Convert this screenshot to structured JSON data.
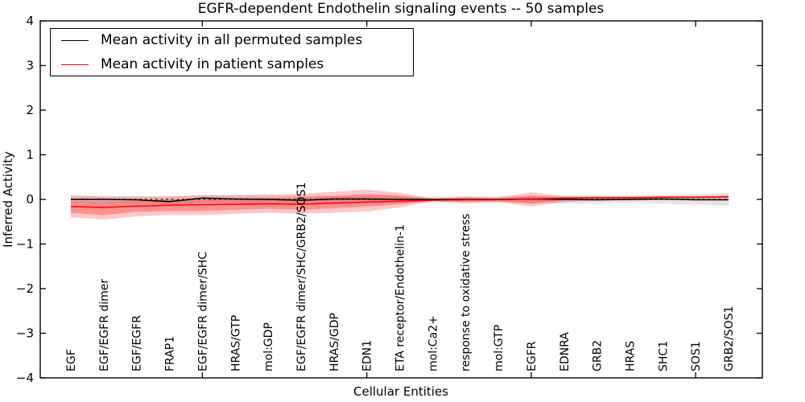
{
  "chart_data": {
    "type": "line",
    "title": "EGFR-dependent Endothelin signaling events -- 50 samples",
    "xlabel": "Cellular Entities",
    "ylabel": "Inferred Activity",
    "ylim": [
      -4,
      4
    ],
    "grid": false,
    "legend_position": "upper left",
    "yticks": [
      {
        "v": 4,
        "label": "4"
      },
      {
        "v": 3,
        "label": "3"
      },
      {
        "v": 2,
        "label": "2"
      },
      {
        "v": 1,
        "label": "1"
      },
      {
        "v": 0,
        "label": "0"
      },
      {
        "v": -1,
        "label": "−1"
      },
      {
        "v": -2,
        "label": "−2"
      },
      {
        "v": -3,
        "label": "−3"
      },
      {
        "v": -4,
        "label": "−4"
      }
    ],
    "categories": [
      "EGF",
      "EGF/EGFR dimer",
      "EGF/EGFR",
      "FRAP1",
      "EGF/EGFR dimer/SHC",
      "HRAS/GTP",
      "mol:GDP",
      "EGF/EGFR dimer/SHC/GRB2/SOS1",
      "HRAS/GDP",
      "EDN1",
      "ETA receptor/Endothelin-1",
      "mol:Ca2+",
      "response to oxidative stress",
      "mol:GTP",
      "EGFR",
      "EDNRA",
      "GRB2",
      "HRAS",
      "SHC1",
      "SOS1",
      "GRB2/SOS1"
    ],
    "major_tick_indices": [
      4,
      9,
      14,
      19
    ],
    "legend": [
      {
        "label": "Mean activity in all permuted samples",
        "color": "#000000"
      },
      {
        "label": "Mean activity in patient samples",
        "color": "#ff0000"
      }
    ],
    "zero_line": {
      "style": "dotted",
      "color": "#000000",
      "y": 0
    },
    "series": [
      {
        "name": "permuted_mean",
        "color": "#000000",
        "values": [
          0.0,
          0.0,
          -0.01,
          -0.05,
          0.03,
          0.01,
          0.0,
          -0.02,
          0.01,
          0.01,
          0.0,
          0.0,
          0.0,
          0.0,
          0.01,
          0.0,
          -0.01,
          0.0,
          0.01,
          -0.01,
          -0.01
        ]
      },
      {
        "name": "patient_mean",
        "color": "#ff0000",
        "values": [
          -0.16,
          -0.18,
          -0.15,
          -0.13,
          -0.12,
          -0.11,
          -0.1,
          -0.11,
          -0.08,
          -0.06,
          -0.04,
          -0.02,
          -0.01,
          -0.01,
          0.01,
          0.03,
          0.04,
          0.04,
          0.05,
          0.05,
          0.06
        ]
      }
    ],
    "bands": [
      {
        "name": "permuted_band",
        "color": "rgba(0,0,0,0.10)",
        "top": [
          0.07,
          0.08,
          0.07,
          0.06,
          0.1,
          0.09,
          0.08,
          0.08,
          0.08,
          0.08,
          0.08,
          0.07,
          0.07,
          0.07,
          0.08,
          0.08,
          0.09,
          0.08,
          0.1,
          0.12,
          0.14
        ],
        "bottom": [
          -0.07,
          -0.09,
          -0.09,
          -0.11,
          -0.07,
          -0.09,
          -0.1,
          -0.12,
          -0.09,
          -0.08,
          -0.08,
          -0.07,
          -0.07,
          -0.07,
          -0.08,
          -0.09,
          -0.09,
          -0.08,
          -0.1,
          -0.12,
          -0.14
        ]
      },
      {
        "name": "patient_band_outer",
        "color": "rgba(255,0,0,0.22)",
        "top": [
          0.1,
          0.06,
          0.06,
          0.07,
          0.09,
          0.1,
          0.11,
          0.13,
          0.17,
          0.22,
          0.15,
          0.02,
          0.06,
          0.04,
          0.16,
          0.07,
          0.06,
          0.06,
          0.07,
          0.07,
          0.09
        ],
        "bottom": [
          -0.4,
          -0.45,
          -0.38,
          -0.35,
          -0.35,
          -0.32,
          -0.3,
          -0.32,
          -0.3,
          -0.27,
          -0.18,
          -0.04,
          -0.09,
          -0.06,
          -0.16,
          -0.06,
          -0.03,
          -0.02,
          -0.01,
          0.0,
          0.01
        ]
      },
      {
        "name": "patient_band_inner",
        "color": "rgba(255,0,0,0.28)",
        "top": [
          -0.04,
          -0.05,
          -0.03,
          0.0,
          0.01,
          0.02,
          0.03,
          0.05,
          0.07,
          0.12,
          0.08,
          0.0,
          0.03,
          0.02,
          0.08,
          0.05,
          0.05,
          0.05,
          0.06,
          0.06,
          0.07
        ],
        "bottom": [
          -0.3,
          -0.35,
          -0.28,
          -0.26,
          -0.26,
          -0.23,
          -0.21,
          -0.23,
          -0.2,
          -0.16,
          -0.11,
          -0.03,
          -0.05,
          -0.03,
          -0.1,
          -0.02,
          0.0,
          0.01,
          0.02,
          0.02,
          0.04
        ]
      }
    ]
  }
}
